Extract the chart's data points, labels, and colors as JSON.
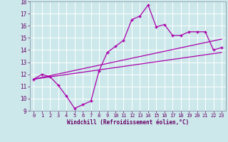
{
  "xlabel": "Windchill (Refroidissement éolien,°C)",
  "xlim": [
    -0.5,
    23.5
  ],
  "ylim": [
    9,
    18
  ],
  "xticks": [
    0,
    1,
    2,
    3,
    4,
    5,
    6,
    7,
    8,
    9,
    10,
    11,
    12,
    13,
    14,
    15,
    16,
    17,
    18,
    19,
    20,
    21,
    22,
    23
  ],
  "yticks": [
    9,
    10,
    11,
    12,
    13,
    14,
    15,
    16,
    17,
    18
  ],
  "bg_color": "#cce8ea",
  "line_color": "#aa00aa",
  "zigzag_x": [
    0,
    1,
    2,
    3,
    4,
    5,
    6,
    7,
    8,
    9,
    10,
    11,
    12,
    13,
    14,
    15,
    16,
    17,
    18,
    19,
    20,
    21,
    22,
    23
  ],
  "zigzag_y": [
    11.6,
    12.0,
    11.8,
    11.1,
    10.2,
    9.2,
    9.5,
    9.8,
    12.3,
    13.8,
    14.3,
    14.8,
    16.5,
    16.8,
    17.7,
    15.9,
    16.1,
    15.2,
    15.2,
    15.5,
    15.5,
    15.5,
    14.0,
    14.2
  ],
  "line1_x": [
    0,
    23
  ],
  "line1_y": [
    11.6,
    14.9
  ],
  "line2_x": [
    0,
    23
  ],
  "line2_y": [
    11.6,
    13.8
  ]
}
